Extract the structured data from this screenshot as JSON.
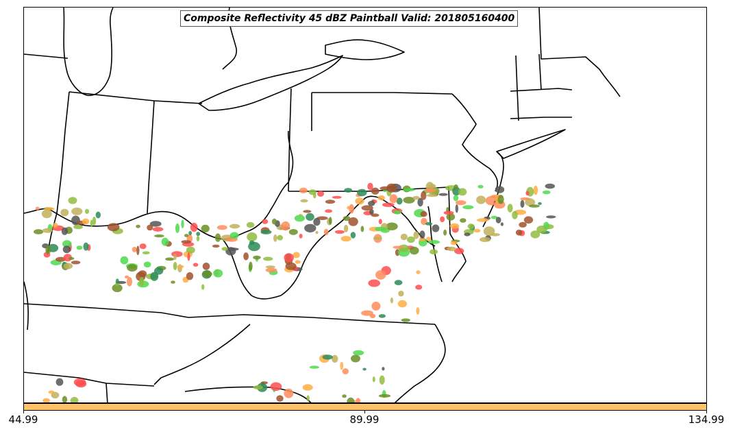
{
  "title": "Composite Reflectivity 45 dBZ Paintball Valid: 201805160400",
  "colorbar": {
    "color": "#ffc266",
    "ticks": [
      "44.99",
      "89.99",
      "134.99"
    ]
  },
  "map": {
    "region": "Ohio Valley / Mid-Atlantic / Northeast US",
    "basemap_style": "state and coastline outlines, black on white",
    "member_colors": [
      "#ff4d4d",
      "#ffad42",
      "#6b8e23",
      "#8fbc3f",
      "#4ddb4d",
      "#a0522d",
      "#555555",
      "#ff8c5a",
      "#c2b05a",
      "#2e8b57"
    ]
  }
}
